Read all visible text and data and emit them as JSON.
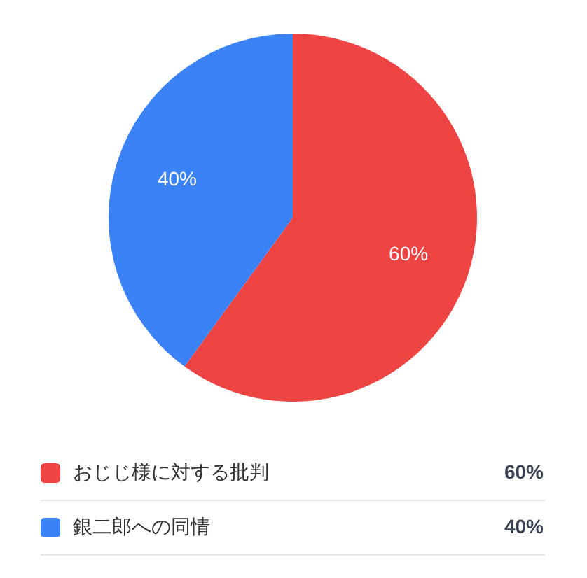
{
  "chart_data": {
    "type": "pie",
    "categories": [
      "おじじ様に対する批判",
      "銀二郎への同情"
    ],
    "values": [
      60,
      40
    ],
    "colors": [
      "#ef4444",
      "#3b82f6"
    ],
    "value_labels": [
      "60%",
      "40%"
    ],
    "legend": "bottom"
  }
}
